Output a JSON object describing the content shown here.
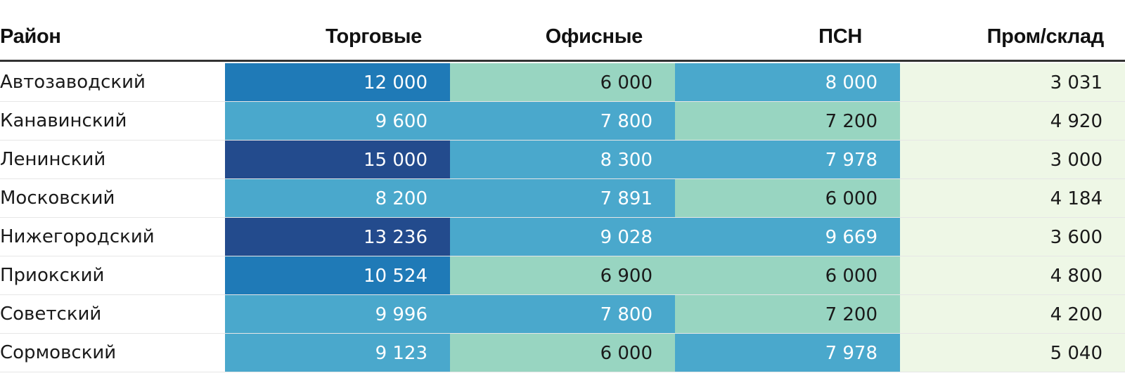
{
  "chart_data": {
    "type": "table",
    "columns": [
      "Район",
      "Торговые",
      "Офисные",
      "ПСН",
      "Пром/склад"
    ],
    "rows": [
      {
        "district": "Автозаводский",
        "values": [
          "12 000",
          "6 000",
          "8 000",
          "3 031"
        ]
      },
      {
        "district": "Канавинский",
        "values": [
          "9 600",
          "7 800",
          "7 200",
          "4 920"
        ]
      },
      {
        "district": "Ленинский",
        "values": [
          "15 000",
          "8 300",
          "7 978",
          "3 000"
        ]
      },
      {
        "district": "Московский",
        "values": [
          "8 200",
          "7 891",
          "6 000",
          "4 184"
        ]
      },
      {
        "district": "Нижегородский",
        "values": [
          "13 236",
          "9 028",
          "9 669",
          "3 600"
        ]
      },
      {
        "district": "Приокский",
        "values": [
          "10 524",
          "6 900",
          "6 000",
          "4 800"
        ]
      },
      {
        "district": "Советский",
        "values": [
          "9 996",
          "7 800",
          "7 200",
          "4 200"
        ]
      },
      {
        "district": "Сормовский",
        "values": [
          "9 123",
          "6 000",
          "7 978",
          "5 040"
        ]
      }
    ],
    "color_scale": [
      {
        "max": 5500,
        "bg": "#eef7e6",
        "text": "#1a1a1a"
      },
      {
        "max": 7500,
        "bg": "#98d5c1",
        "text": "#1a1a1a"
      },
      {
        "max": 10000,
        "bg": "#4aa8cc",
        "text": "#ffffff"
      },
      {
        "max": 13000,
        "bg": "#1f7ab7",
        "text": "#ffffff"
      },
      {
        "max": 1000000,
        "bg": "#234b8d",
        "text": "#ffffff"
      }
    ]
  }
}
